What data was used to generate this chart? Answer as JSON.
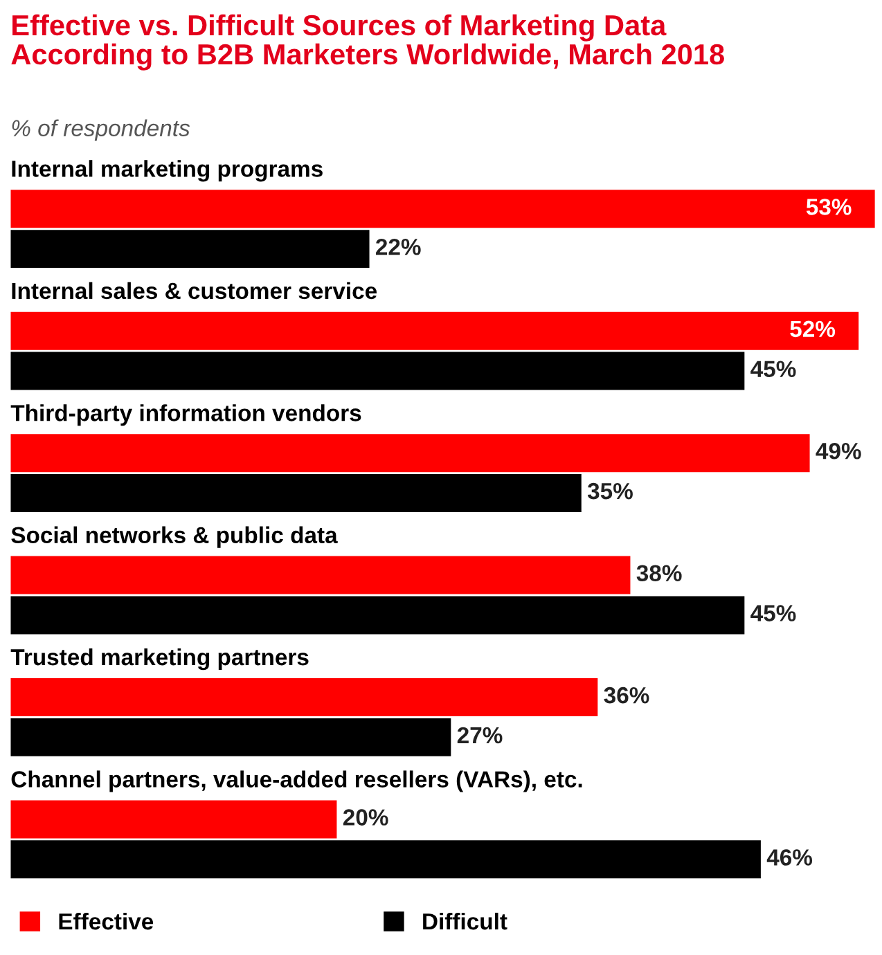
{
  "chart_data": {
    "type": "bar",
    "orientation": "horizontal",
    "title": "Effective vs. Difficult Sources of Marketing Data\nAccording to B2B Marketers Worldwide, March 2018",
    "subtitle": "% of respondents",
    "categories": [
      "Internal marketing programs",
      "Internal sales & customer service",
      "Third-party information vendors",
      "Social networks & public data",
      "Trusted marketing partners",
      "Channel partners, value-added resellers (VARs), etc."
    ],
    "series": [
      {
        "name": "Effective",
        "color": "#ff0000",
        "values": [
          53,
          52,
          49,
          38,
          36,
          20
        ],
        "value_labels": [
          "53%",
          "52%",
          "49%",
          "38%",
          "36%",
          "20%"
        ]
      },
      {
        "name": "Difficult",
        "color": "#000000",
        "values": [
          22,
          45,
          35,
          45,
          27,
          46
        ],
        "value_labels": [
          "22%",
          "45%",
          "35%",
          "45%",
          "27%",
          "46%"
        ]
      }
    ],
    "legend": "bottom left"
  }
}
